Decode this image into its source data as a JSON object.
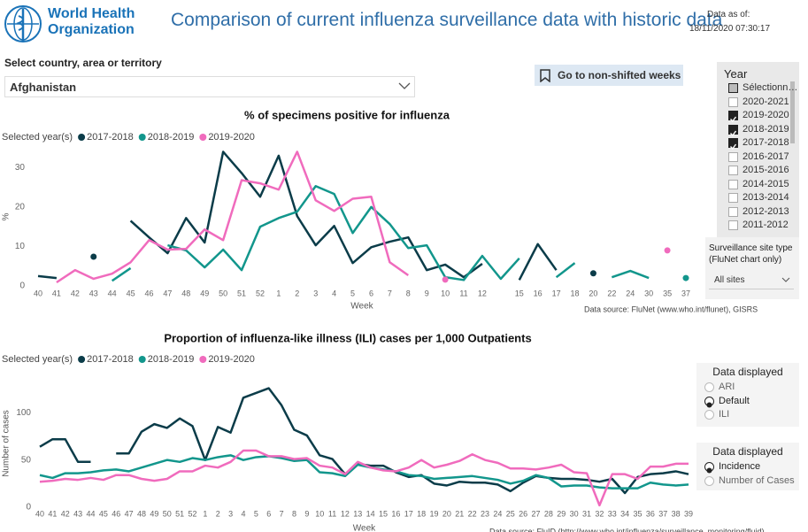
{
  "header": {
    "logo_text": [
      "World Health",
      "Organization"
    ],
    "title": "Comparison of current influenza surveillance data with historic data",
    "data_as_of_label": "Data as of:",
    "data_as_of": "18/11/2020 07:30:17"
  },
  "country_filter": {
    "label": "Select country, area or territory",
    "value": "Afghanistan"
  },
  "bookmark_button": "Go to non-shifted weeks",
  "year_slicer": {
    "title": "Year",
    "items": [
      {
        "label": "Sélectionn…",
        "state": "partial"
      },
      {
        "label": "2020-2021",
        "state": "unchecked"
      },
      {
        "label": "2019-2020",
        "state": "checked"
      },
      {
        "label": "2018-2019",
        "state": "checked"
      },
      {
        "label": "2017-2018",
        "state": "checked"
      },
      {
        "label": "2016-2017",
        "state": "unchecked"
      },
      {
        "label": "2015-2016",
        "state": "unchecked"
      },
      {
        "label": "2014-2015",
        "state": "unchecked"
      },
      {
        "label": "2013-2014",
        "state": "unchecked"
      },
      {
        "label": "2012-2013",
        "state": "unchecked"
      },
      {
        "label": "2011-2012",
        "state": "unchecked"
      }
    ]
  },
  "site_type": {
    "label": "Surveillance site type (FluNet chart only)",
    "value": "All sites"
  },
  "ili_display": {
    "title": "Data displayed",
    "options": [
      "ARI",
      "Default",
      "ILI"
    ],
    "selected": 1
  },
  "measure_display": {
    "title": "Data displayed",
    "options": [
      "Incidence",
      "Number of Cases"
    ],
    "selected": 0
  },
  "chart_data": [
    {
      "type": "line",
      "title": "% of specimens positive for influenza",
      "legend_title": "Selected year(s)",
      "x_label": "Week",
      "y_label": "%",
      "source": "Data source: FluNet (www.who.int/flunet), GISRS",
      "categories": [
        "40",
        "41",
        "42",
        "43",
        "44",
        "45",
        "46",
        "47",
        "48",
        "49",
        "50",
        "51",
        "52",
        "1",
        "2",
        "3",
        "4",
        "5",
        "6",
        "7",
        "8",
        "9",
        "10",
        "11",
        "12",
        null,
        "15",
        "16",
        "17",
        "18",
        "20",
        "22",
        "24",
        "30",
        "35",
        "37"
      ],
      "series": [
        {
          "name": "2017-2018",
          "color": "#0b3c49",
          "values": [
            2.5,
            2,
            null,
            7.4,
            null,
            16.5,
            12.3,
            8.3,
            17.2,
            11,
            34,
            28.6,
            22.6,
            33,
            17.7,
            10.3,
            15.2,
            5.8,
            9.8,
            11.2,
            12.3,
            4,
            5.4,
            2.2,
            5.6,
            null,
            1.5,
            10.6,
            4,
            null,
            3.2,
            null,
            null,
            null,
            null,
            null
          ]
        },
        {
          "name": "2018-2019",
          "color": "#12968c",
          "values": [
            null,
            null,
            null,
            null,
            1.3,
            4.5,
            null,
            10.3,
            9,
            4.7,
            9.2,
            4,
            15,
            17.2,
            18.8,
            25.3,
            23.3,
            13.4,
            20,
            15.7,
            9.6,
            10.3,
            2.2,
            1.5,
            7.6,
            1.8,
            7,
            null,
            2.2,
            5.8,
            null,
            2.2,
            3.8,
            2,
            null,
            2
          ]
        },
        {
          "name": "2019-2020",
          "color": "#f06bbd",
          "values": [
            null,
            0.9,
            4,
            1.8,
            3.1,
            6,
            11.6,
            9.2,
            9.4,
            14.3,
            11.6,
            26.8,
            26,
            24.4,
            34,
            21.7,
            19,
            22.1,
            22.6,
            6,
            2.7,
            null,
            1.6,
            null,
            null,
            null,
            null,
            null,
            null,
            null,
            null,
            null,
            null,
            null,
            9,
            null
          ]
        }
      ],
      "ylim": [
        0,
        35
      ],
      "yticks": [
        0,
        10,
        20,
        30
      ]
    },
    {
      "type": "line",
      "title": "Proportion of influenza-like illness (ILI) cases per 1,000 Outpatients",
      "legend_title": "Selected year(s)",
      "x_label": "Week",
      "y_label": "Number of cases",
      "source": "Data source: FluID (http://www.who.int/influenza/surveillance_monitoring/fluid)",
      "categories": [
        "40",
        "41",
        "42",
        "43",
        "44",
        "45",
        "46",
        "47",
        "48",
        "49",
        "50",
        "51",
        "52",
        "1",
        "2",
        "3",
        "4",
        "5",
        "6",
        "7",
        "8",
        "9",
        "10",
        "11",
        "12",
        "13",
        "14",
        "15",
        "16",
        "17",
        "18",
        "19",
        "20",
        "21",
        "22",
        "23",
        "24",
        "25",
        "26",
        "27",
        "28",
        "29",
        "30",
        "31",
        "32",
        "33",
        "34",
        "35",
        "36",
        "37",
        "38",
        "39"
      ],
      "series": [
        {
          "name": "2017-2018",
          "color": "#0b3c49",
          "values": [
            64,
            72,
            72,
            48,
            48,
            null,
            57,
            57,
            80,
            88,
            84,
            94,
            86,
            50,
            85,
            79,
            116,
            121,
            126,
            108,
            82,
            76,
            55,
            51,
            35,
            46,
            44,
            44,
            37,
            32,
            34,
            25,
            23,
            27,
            26,
            26,
            24,
            17,
            26,
            33,
            31,
            30,
            30,
            29,
            27,
            30,
            15,
            32,
            35,
            36,
            38,
            35
          ]
        },
        {
          "name": "2018-2019",
          "color": "#12968c",
          "values": [
            34,
            31,
            36,
            36,
            37,
            39,
            40,
            38,
            42,
            46,
            50,
            48,
            52,
            50,
            53,
            55,
            50,
            53,
            54,
            52,
            49,
            50,
            37,
            36,
            33,
            45,
            42,
            40,
            38,
            34,
            33,
            30,
            31,
            32,
            33,
            31,
            29,
            25,
            28,
            34,
            31,
            22,
            23,
            23,
            21,
            20,
            20,
            20,
            26,
            24,
            23,
            24
          ]
        },
        {
          "name": "2019-2020",
          "color": "#f06bbd",
          "values": [
            27,
            28,
            30,
            29,
            31,
            29,
            34,
            34,
            30,
            28,
            30,
            38,
            38,
            44,
            42,
            48,
            60,
            60,
            54,
            54,
            51,
            52,
            44,
            42,
            35,
            48,
            42,
            39,
            38,
            42,
            50,
            42,
            45,
            49,
            56,
            50,
            47,
            41,
            41,
            40,
            42,
            45,
            37,
            36,
            2,
            35,
            35,
            30,
            43,
            43,
            46,
            46
          ]
        }
      ],
      "ylim": [
        0,
        135
      ],
      "yticks": [
        0,
        50,
        100
      ]
    }
  ]
}
